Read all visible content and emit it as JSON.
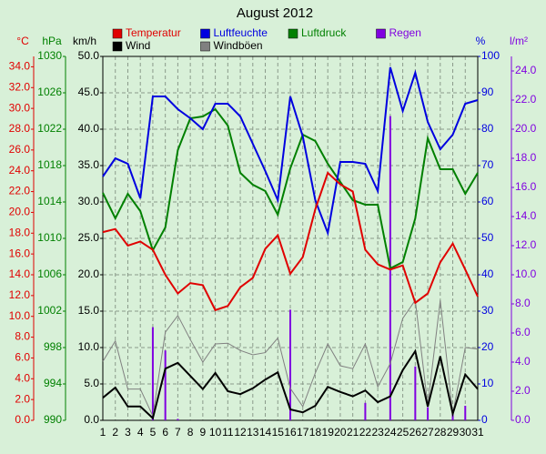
{
  "chart_data": {
    "type": "line",
    "title": "August 2012",
    "x": [
      1,
      2,
      3,
      4,
      5,
      6,
      7,
      8,
      9,
      10,
      11,
      12,
      13,
      14,
      15,
      16,
      17,
      18,
      19,
      20,
      21,
      22,
      23,
      24,
      25,
      26,
      27,
      28,
      29,
      30,
      31
    ],
    "xlim": [
      1,
      31
    ],
    "grid": true,
    "axes": [
      {
        "label": "°C",
        "color": "#e00000",
        "side": "left",
        "lim": [
          0,
          35
        ],
        "ticks": [
          {
            "value": 0,
            "label": "0.0"
          },
          {
            "value": 2,
            "label": "2.0"
          },
          {
            "value": 4,
            "label": "4.0"
          },
          {
            "value": 6,
            "label": "6.0"
          },
          {
            "value": 8,
            "label": "8.0"
          },
          {
            "value": 10,
            "label": "10.0"
          },
          {
            "value": 12,
            "label": "12.0"
          },
          {
            "value": 14,
            "label": "14.0"
          },
          {
            "value": 16,
            "label": "16.0"
          },
          {
            "value": 18,
            "label": "18.0"
          },
          {
            "value": 20,
            "label": "20.0"
          },
          {
            "value": 22,
            "label": "22.0"
          },
          {
            "value": 24,
            "label": "24.0"
          },
          {
            "value": 26,
            "label": "26.0"
          },
          {
            "value": 28,
            "label": "28.0"
          },
          {
            "value": 30,
            "label": "30.0"
          },
          {
            "value": 32,
            "label": "32.0"
          },
          {
            "value": 34,
            "label": "34.0"
          }
        ]
      },
      {
        "label": "hPa",
        "color": "#008000",
        "side": "left",
        "lim": [
          990,
          1030
        ],
        "ticks": [
          990,
          994,
          998,
          1002,
          1006,
          1010,
          1014,
          1018,
          1022,
          1026,
          1030
        ]
      },
      {
        "label": "km/h",
        "color": "#000000",
        "side": "left",
        "lim": [
          0,
          50
        ],
        "ticks": [
          {
            "value": 0,
            "label": "0.0"
          },
          {
            "value": 5,
            "label": "5.0"
          },
          {
            "value": 10,
            "label": "10.0"
          },
          {
            "value": 15,
            "label": "15.0"
          },
          {
            "value": 20,
            "label": "20.0"
          },
          {
            "value": 25,
            "label": "25.0"
          },
          {
            "value": 30,
            "label": "30.0"
          },
          {
            "value": 35,
            "label": "35.0"
          },
          {
            "value": 40,
            "label": "40.0"
          },
          {
            "value": 45,
            "label": "45.0"
          },
          {
            "value": 50,
            "label": "50.0"
          }
        ]
      },
      {
        "label": "%",
        "color": "#0000e0",
        "side": "right",
        "lim": [
          0,
          100
        ],
        "ticks": [
          0,
          10,
          20,
          30,
          40,
          50,
          60,
          70,
          80,
          90,
          100
        ]
      },
      {
        "label": "l/m²",
        "color": "#8000e0",
        "side": "right",
        "lim": [
          0,
          25
        ],
        "ticks": [
          {
            "value": 0,
            "label": "0.0"
          },
          {
            "value": 2,
            "label": "2.0"
          },
          {
            "value": 4,
            "label": "4.0"
          },
          {
            "value": 6,
            "label": "6.0"
          },
          {
            "value": 8,
            "label": "8.0"
          },
          {
            "value": 10,
            "label": "10.0"
          },
          {
            "value": 12,
            "label": "12.0"
          },
          {
            "value": 14,
            "label": "14.0"
          },
          {
            "value": 16,
            "label": "16.0"
          },
          {
            "value": 18,
            "label": "18.0"
          },
          {
            "value": 20,
            "label": "20.0"
          },
          {
            "value": 22,
            "label": "22.0"
          },
          {
            "value": 24,
            "label": "24.0"
          }
        ]
      }
    ],
    "series": [
      {
        "name": "Temperatur",
        "color": "#e00000",
        "axis": 0,
        "type": "line",
        "values": [
          18.1,
          18.4,
          16.8,
          17.2,
          16.4,
          14.0,
          12.2,
          13.2,
          13.0,
          10.6,
          11.0,
          12.8,
          13.7,
          16.5,
          17.8,
          14.1,
          15.7,
          20.3,
          23.8,
          22.7,
          22.0,
          16.4,
          15.0,
          14.5,
          14.9,
          11.3,
          12.2,
          15.2,
          17.0,
          14.5,
          11.9
        ]
      },
      {
        "name": "Luftfeuchte",
        "color": "#0000e0",
        "axis": 3,
        "type": "line",
        "values": [
          67,
          72,
          70.5,
          61,
          89,
          89,
          85.5,
          83,
          80,
          87,
          87,
          83.5,
          76,
          68.5,
          60.5,
          89,
          78,
          60.5,
          51.5,
          71,
          71,
          70.5,
          63,
          97,
          85,
          95.5,
          82,
          74.5,
          78.5,
          87,
          88
        ]
      },
      {
        "name": "Luftdruck",
        "color": "#008000",
        "axis": 1,
        "type": "line",
        "values": [
          1015,
          1012.2,
          1014.9,
          1013,
          1008.7,
          1011.2,
          1019.7,
          1023.2,
          1023.4,
          1024.2,
          1022.4,
          1017.2,
          1015.9,
          1015.2,
          1012.6,
          1017.7,
          1021.4,
          1020.7,
          1018.2,
          1016.2,
          1014.2,
          1013.7,
          1013.7,
          1006.7,
          1007.4,
          1012.2,
          1021,
          1017.6,
          1017.6,
          1014.9,
          1017.2
        ]
      },
      {
        "name": "Regen",
        "color": "#8000e0",
        "axis": 4,
        "type": "bar",
        "values": [
          0,
          0,
          0,
          0,
          6.4,
          4.8,
          0.1,
          0,
          0,
          0,
          0,
          0,
          0,
          0,
          0,
          7.6,
          0,
          0,
          0,
          0,
          0,
          1.2,
          0,
          20.9,
          0,
          3.7,
          0.9,
          0,
          0.6,
          1.0,
          0
        ]
      },
      {
        "name": "Wind",
        "color": "#000000",
        "axis": 2,
        "type": "line",
        "values": [
          3.1,
          4.5,
          1.9,
          1.9,
          0.3,
          7.1,
          7.9,
          6.1,
          4.3,
          6.5,
          4.0,
          3.6,
          4.4,
          5.6,
          6.6,
          1.5,
          1.1,
          2.0,
          4.6,
          3.9,
          3.3,
          4.1,
          2.5,
          3.3,
          6.9,
          9.5,
          1.9,
          8.8,
          0.9,
          6.3,
          4.3
        ]
      },
      {
        "name": "Windböen",
        "color": "#808080",
        "axis": 2,
        "type": "line",
        "values": [
          8.1,
          10.9,
          4.3,
          4.3,
          0.6,
          12.1,
          14.4,
          11.1,
          8.0,
          10.5,
          10.6,
          9.6,
          9.0,
          9.3,
          11.3,
          4.4,
          1.9,
          6.5,
          10.5,
          7.5,
          7.1,
          10.5,
          4.6,
          7.8,
          14.0,
          16.5,
          2.1,
          16.5,
          0.9,
          10.0,
          9.8
        ]
      }
    ]
  }
}
